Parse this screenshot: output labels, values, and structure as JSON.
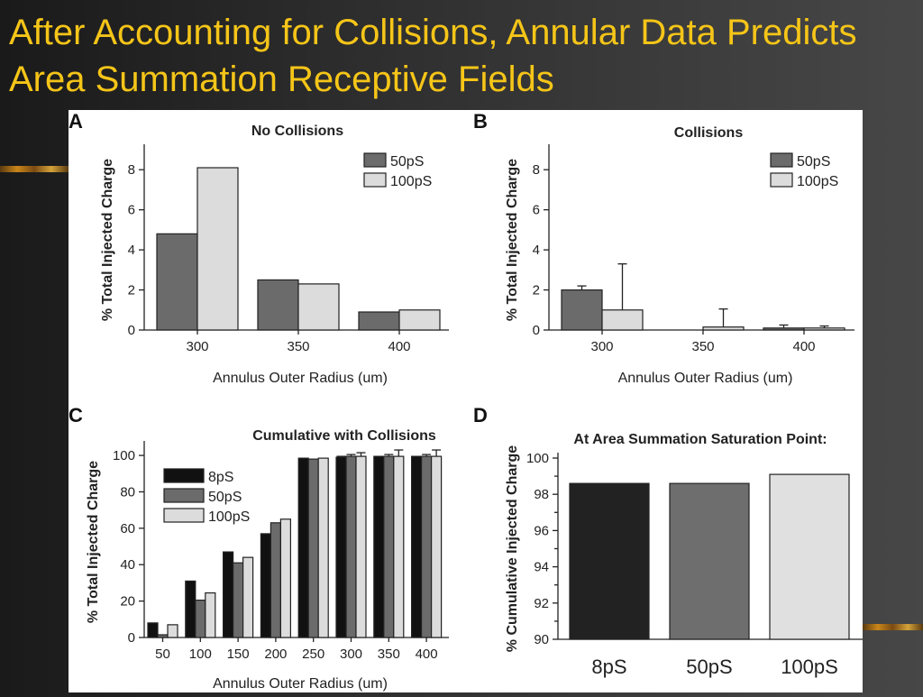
{
  "slide": {
    "title": "After Accounting for Collisions, Annular Data Predicts Area Summation Receptive Fields"
  },
  "colors": {
    "title": "#f5c518",
    "8pS": "#111111",
    "50pS": "#6b6b6b",
    "100pS": "#dcdcdc",
    "8pS_saturation": "#222222",
    "50pS_saturation": "#6e6e6e",
    "100pS_saturation": "#e0e0e0"
  },
  "chart_data": [
    {
      "panel": "A",
      "type": "bar",
      "title": "No Collisions",
      "xlabel": "Annulus Outer Radius (um)",
      "ylabel": "% Total Injected Charge",
      "ylim": [
        0,
        9
      ],
      "yticks": [
        "0",
        "2",
        "4",
        "6",
        "8"
      ],
      "categories": [
        "300",
        "350",
        "400"
      ],
      "legend_position": "top-right",
      "series": [
        {
          "name": "50pS",
          "color_key": "50pS",
          "values": [
            4.8,
            2.5,
            0.9
          ]
        },
        {
          "name": "100pS",
          "color_key": "100pS",
          "values": [
            8.1,
            2.3,
            1.0
          ]
        }
      ]
    },
    {
      "panel": "B",
      "type": "bar",
      "title": "Collisions",
      "xlabel": "Annulus Outer Radius (um)",
      "ylabel": "% Total Injected Charge",
      "ylim": [
        0,
        9
      ],
      "yticks": [
        "0",
        "2",
        "4",
        "6",
        "8"
      ],
      "categories": [
        "300",
        "350",
        "400"
      ],
      "legend_position": "top-right",
      "series": [
        {
          "name": "50pS",
          "color_key": "50pS",
          "values": [
            2.0,
            0.0,
            0.1
          ],
          "errors": [
            0.2,
            0.0,
            0.15
          ]
        },
        {
          "name": "100pS",
          "color_key": "100pS",
          "values": [
            1.0,
            0.15,
            0.1
          ],
          "errors": [
            2.3,
            0.9,
            0.1
          ]
        }
      ]
    },
    {
      "panel": "C",
      "type": "bar",
      "title": "Cumulative with Collisions",
      "xlabel": "Annulus Outer Radius (um)",
      "ylabel": "% Total Injected Charge",
      "ylim": [
        0,
        105
      ],
      "yticks": [
        "0",
        "20",
        "40",
        "60",
        "80",
        "100"
      ],
      "categories": [
        "50",
        "100",
        "150",
        "200",
        "250",
        "300",
        "350",
        "400"
      ],
      "legend_position": "top-left",
      "series": [
        {
          "name": "8pS",
          "color_key": "8pS",
          "values": [
            8,
            31,
            47,
            57,
            98.5,
            99,
            99.5,
            99.5
          ],
          "errors": [
            0,
            0,
            0,
            0,
            0,
            0.5,
            0,
            0
          ]
        },
        {
          "name": "50pS",
          "color_key": "50pS",
          "values": [
            1.5,
            20.5,
            41,
            63,
            98,
            99.5,
            99.5,
            99.5
          ],
          "errors": [
            0,
            0,
            0,
            0,
            0,
            1,
            1,
            1
          ]
        },
        {
          "name": "100pS",
          "color_key": "100pS",
          "values": [
            7,
            24.5,
            44,
            65,
            98.5,
            99.5,
            99.5,
            99.5
          ],
          "errors": [
            0,
            0,
            0,
            0,
            0,
            2,
            3.5,
            3.5
          ]
        }
      ]
    },
    {
      "panel": "D",
      "type": "bar",
      "title": "At Area Summation Saturation Point:",
      "xlabel": "",
      "ylabel": "% Cumulative Injected Charge",
      "ylim": [
        90,
        100
      ],
      "yticks": [
        "90",
        "92",
        "94",
        "96",
        "98",
        "100"
      ],
      "categories": [
        "8pS",
        "50pS",
        "100pS"
      ],
      "values": [
        98.6,
        98.6,
        99.1
      ],
      "bar_color_keys": [
        "8pS_saturation",
        "50pS_saturation",
        "100pS_saturation"
      ]
    }
  ]
}
